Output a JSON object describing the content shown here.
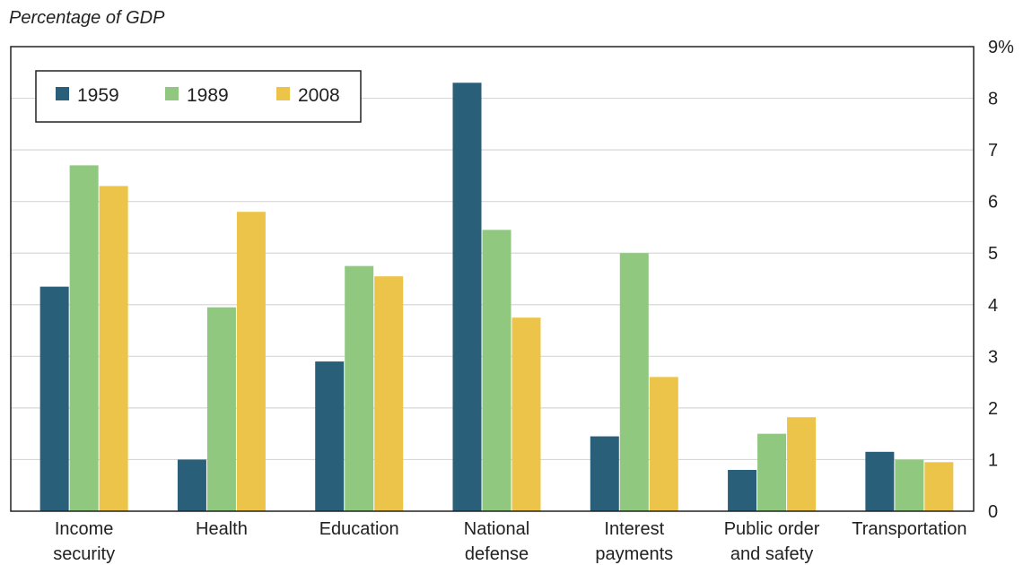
{
  "chart_data": {
    "type": "bar",
    "ylabel": "Percentage of GDP",
    "ylim": [
      0,
      9
    ],
    "yticks": [
      "0",
      "1",
      "2",
      "3",
      "4",
      "5",
      "6",
      "7",
      "8",
      "9%"
    ],
    "categories": [
      [
        "Income",
        "security"
      ],
      [
        "Health"
      ],
      [
        "Education"
      ],
      [
        "National",
        "defense"
      ],
      [
        "Interest",
        "payments"
      ],
      [
        "Public order",
        "and safety"
      ],
      [
        "Transportation"
      ]
    ],
    "series": [
      {
        "name": "1959",
        "color": "#2a5f7a",
        "values": [
          4.35,
          1.0,
          2.9,
          8.3,
          1.45,
          0.8,
          1.15
        ]
      },
      {
        "name": "1989",
        "color": "#8fc87e",
        "values": [
          6.7,
          3.95,
          4.75,
          5.45,
          5.0,
          1.5,
          1.0
        ]
      },
      {
        "name": "2008",
        "color": "#ecc44a",
        "values": [
          6.3,
          5.8,
          4.55,
          3.75,
          2.6,
          1.82,
          0.95
        ]
      }
    ],
    "grid": true,
    "legend": "top-left"
  }
}
